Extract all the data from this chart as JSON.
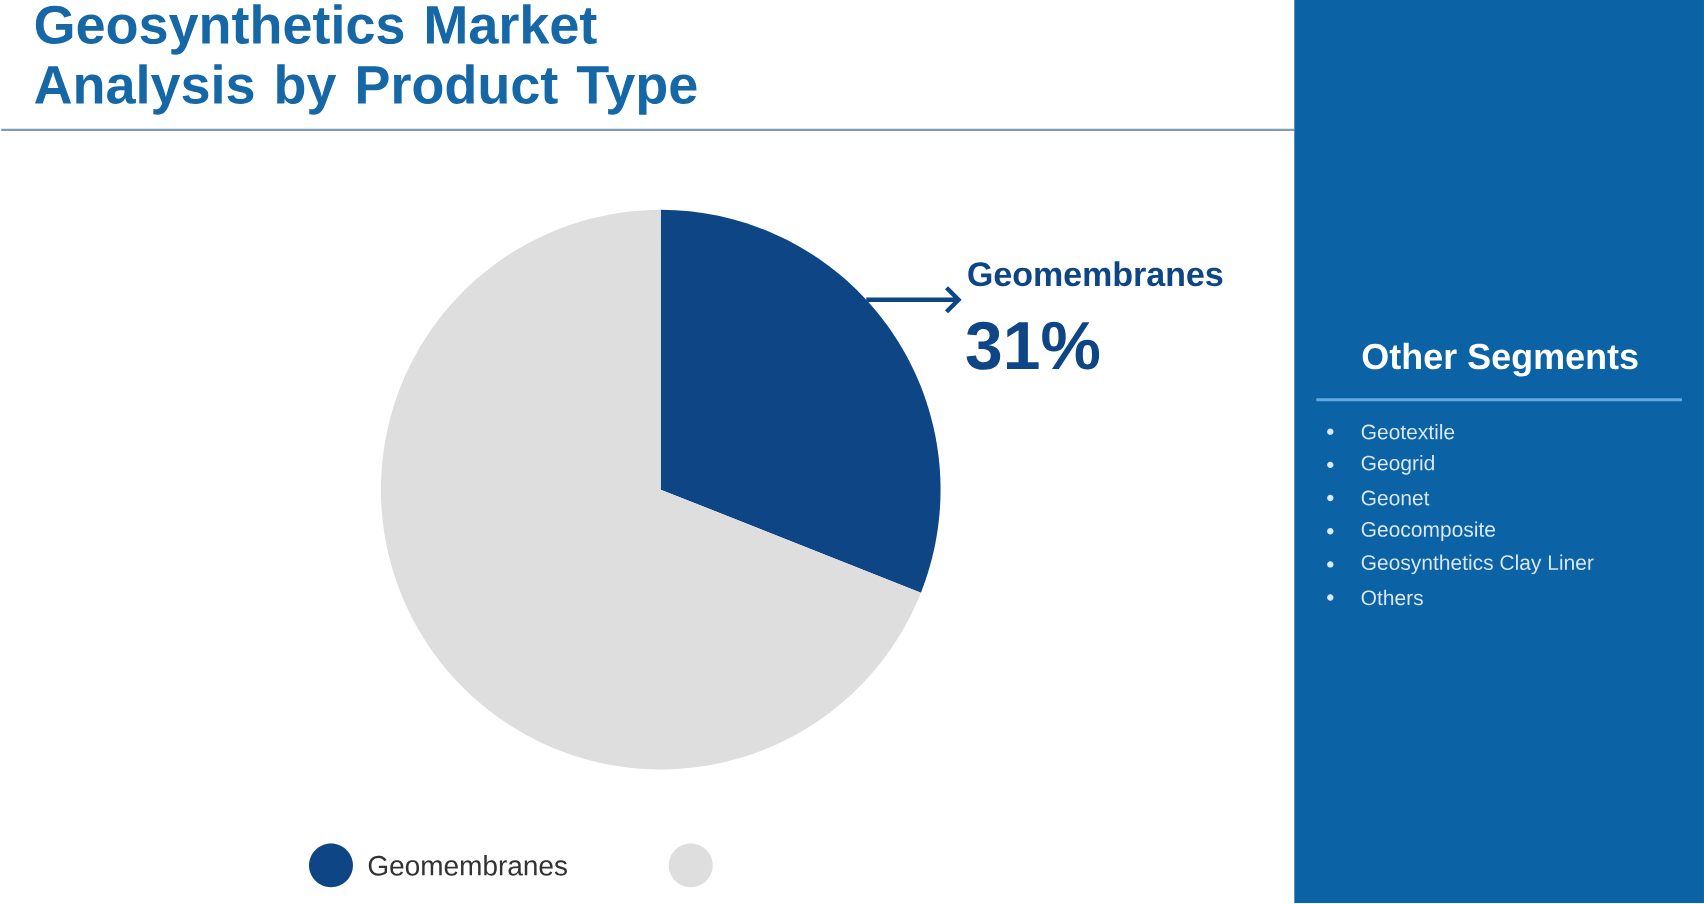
{
  "chart_data": [
    {
      "type": "pie",
      "title": "Geosynthetics Market Analysis by Product Type",
      "categories": [
        "Geomembranes",
        null
      ],
      "values": [
        31,
        69
      ],
      "colors": [
        "#0d4585",
        "#dedede"
      ],
      "value_labels": [
        "31%",
        null
      ],
      "legend": "bottom"
    },
    {
      "type": "other",
      "title": "Other Segments",
      "annotations": [
        "Geotextile",
        "Geogrid",
        "Geonet",
        "Geocomposite",
        "Geosynthetics Clay Liner",
        "Others"
      ]
    }
  ]
}
